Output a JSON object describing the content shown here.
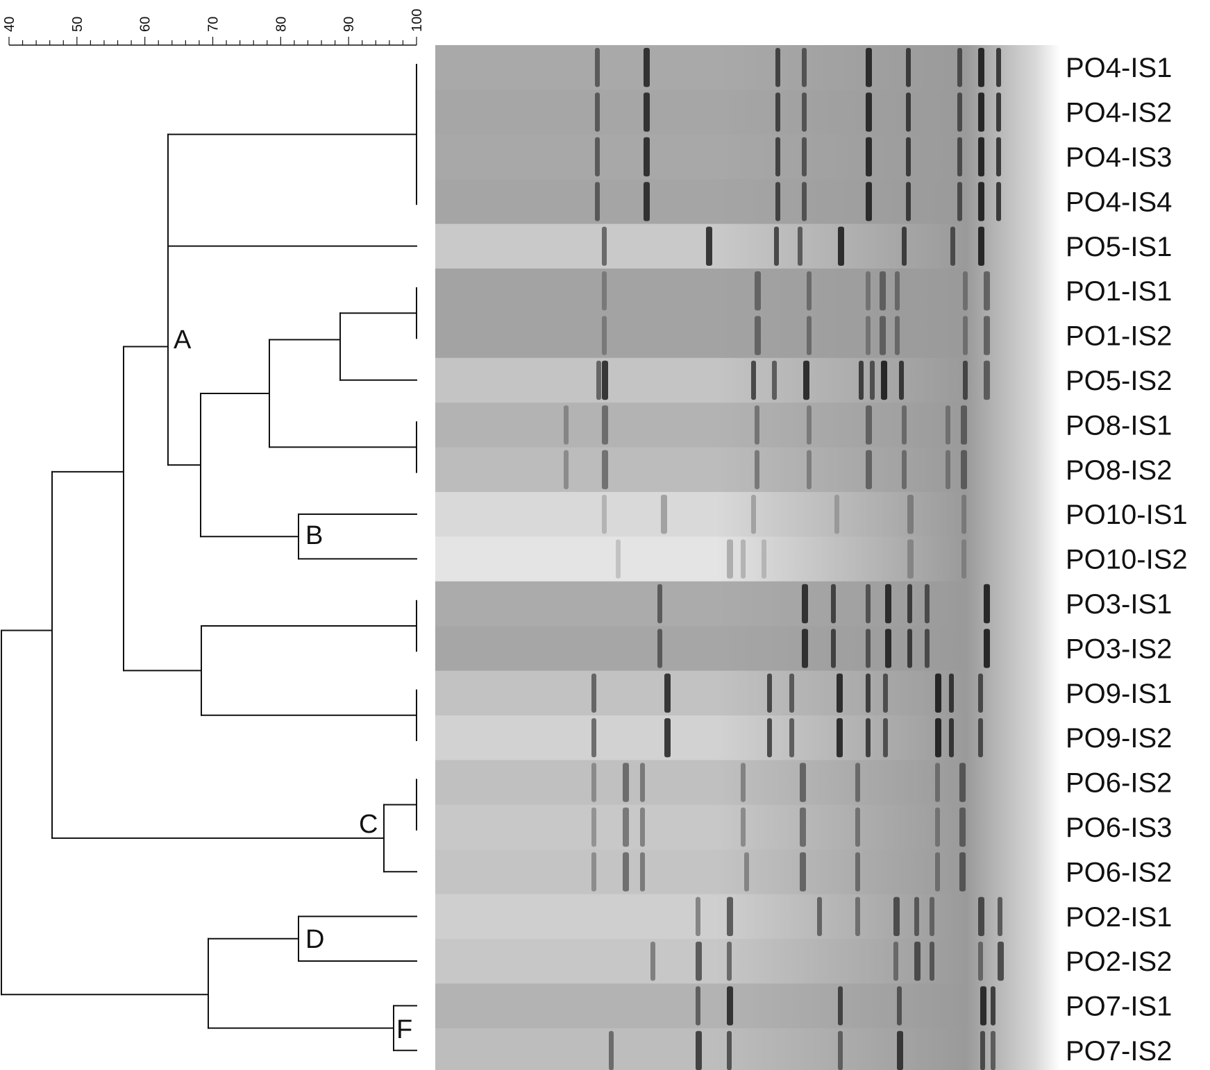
{
  "scale": {
    "ticks": [
      "40",
      "50",
      "60",
      "70",
      "80",
      "90",
      "100"
    ],
    "min": 40,
    "max": 100,
    "minor_step": 2
  },
  "samples": [
    "PO4-IS1",
    "PO4-IS2",
    "PO4-IS3",
    "PO4-IS4",
    "PO5-IS1",
    "PO1-IS1",
    "PO1-IS2",
    "PO5-IS2",
    "PO8-IS1",
    "PO8-IS2",
    "PO10-IS1",
    "PO10-IS2",
    "PO3-IS1",
    "PO3-IS2",
    "PO9-IS1",
    "PO9-IS2",
    "PO6-IS2",
    "PO6-IS3",
    "PO6-IS2",
    "PO2-IS1",
    "PO2-IS2",
    "PO7-IS1",
    "PO7-IS2"
  ],
  "cluster_labels": [
    "A",
    "B",
    "C",
    "D",
    "F"
  ],
  "colors": {
    "line": "#111111",
    "band": "#1a1a1a"
  }
}
